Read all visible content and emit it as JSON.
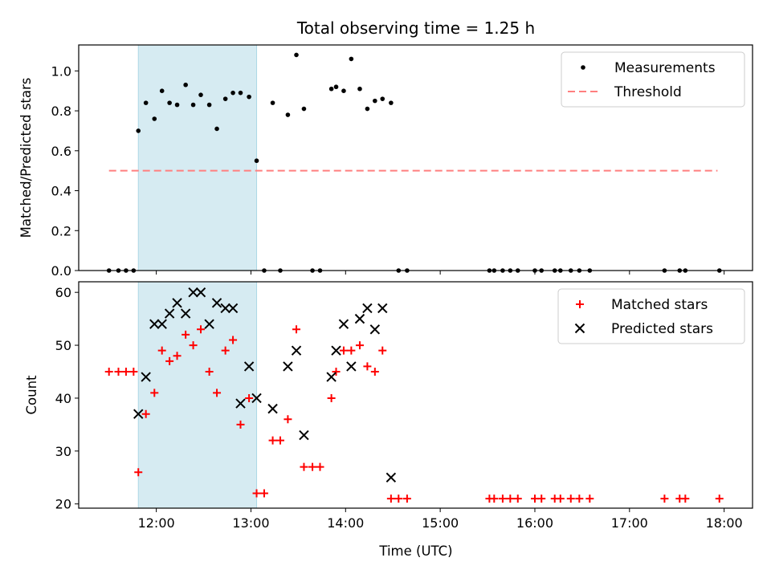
{
  "title": "Total observing time = 1.25 h",
  "xlabel": "Time (UTC)",
  "xticks": [
    "12:00",
    "13:00",
    "14:00",
    "15:00",
    "16:00",
    "17:00",
    "18:00"
  ],
  "colors": {
    "span": "#add8e6",
    "measure": "#000000",
    "threshold": "#ff7f7f",
    "matched": "#ff0000",
    "predicted": "#000000"
  },
  "chart_data": [
    {
      "type": "scatter",
      "name": "ratio-panel",
      "ylabel": "Matched/Predicted stars",
      "xlim": [
        11.18,
        18.3
      ],
      "ylim": [
        0,
        1.13
      ],
      "yticks": [
        "0.0",
        "0.2",
        "0.4",
        "0.6",
        "0.8",
        "1.0"
      ],
      "ytick_values": [
        0,
        0.2,
        0.4,
        0.6,
        0.8,
        1.0
      ],
      "highlight_span": [
        11.81,
        13.06
      ],
      "threshold": {
        "y": 0.5,
        "x": [
          11.5,
          17.93
        ]
      },
      "legend": {
        "position": "upper-right",
        "entries": [
          "Measurements",
          "Threshold"
        ]
      },
      "series": [
        {
          "name": "Measurements",
          "x": [
            11.5,
            11.6,
            11.68,
            11.76,
            11.81,
            11.89,
            11.98,
            12.06,
            12.14,
            12.22,
            12.31,
            12.39,
            12.47,
            12.56,
            12.64,
            12.73,
            12.81,
            12.89,
            12.98,
            13.06,
            13.14,
            13.23,
            13.31,
            13.39,
            13.48,
            13.56,
            13.65,
            13.73,
            13.85,
            13.9,
            13.98,
            14.06,
            14.15,
            14.23,
            14.31,
            14.39,
            14.48,
            14.56,
            14.65,
            15.52,
            15.57,
            15.66,
            15.74,
            15.82,
            16.0,
            16.07,
            16.21,
            16.27,
            16.38,
            16.47,
            16.58,
            17.37,
            17.53,
            17.59,
            17.95
          ],
          "y": [
            0,
            0,
            0,
            0,
            0.7,
            0.84,
            0.76,
            0.9,
            0.84,
            0.83,
            0.93,
            0.83,
            0.88,
            0.83,
            0.71,
            0.86,
            0.89,
            0.89,
            0.87,
            0.55,
            0,
            0.84,
            0,
            0.78,
            1.08,
            0.81,
            0,
            0,
            0.91,
            0.92,
            0.9,
            1.06,
            0.91,
            0.81,
            0.85,
            0.86,
            0.84,
            0,
            0,
            0,
            0,
            0,
            0,
            0,
            0,
            0,
            0,
            0,
            0,
            0,
            0,
            0,
            0,
            0,
            0
          ]
        }
      ]
    },
    {
      "type": "scatter",
      "name": "count-panel",
      "ylabel": "Count",
      "xlim": [
        11.18,
        18.3
      ],
      "ylim": [
        19.2,
        62.0
      ],
      "yticks": [
        "20",
        "30",
        "40",
        "50",
        "60"
      ],
      "ytick_values": [
        20,
        30,
        40,
        50,
        60
      ],
      "highlight_span": [
        11.81,
        13.06
      ],
      "legend": {
        "position": "upper-right",
        "entries": [
          "Matched stars",
          "Predicted stars"
        ]
      },
      "series": [
        {
          "name": "Matched stars",
          "x": [
            11.5,
            11.6,
            11.68,
            11.76,
            11.81,
            11.89,
            11.98,
            12.06,
            12.14,
            12.22,
            12.31,
            12.39,
            12.47,
            12.56,
            12.64,
            12.73,
            12.81,
            12.89,
            12.98,
            13.06,
            13.14,
            13.23,
            13.31,
            13.39,
            13.48,
            13.56,
            13.65,
            13.73,
            13.85,
            13.9,
            13.98,
            14.06,
            14.15,
            14.23,
            14.31,
            14.39,
            14.48,
            14.56,
            14.65,
            15.52,
            15.57,
            15.66,
            15.74,
            15.82,
            16.0,
            16.07,
            16.21,
            16.27,
            16.38,
            16.47,
            16.58,
            17.37,
            17.53,
            17.59,
            17.95
          ],
          "y": [
            45,
            45,
            45,
            45,
            26,
            37,
            41,
            49,
            47,
            48,
            52,
            50,
            53,
            45,
            41,
            49,
            51,
            35,
            40,
            22,
            22,
            32,
            32,
            36,
            53,
            27,
            27,
            27,
            40,
            45,
            49,
            49,
            50,
            46,
            45,
            49,
            21,
            21,
            21,
            21,
            21,
            21,
            21,
            21,
            21,
            21,
            21,
            21,
            21,
            21,
            21,
            21,
            21,
            21,
            21
          ]
        },
        {
          "name": "Predicted stars",
          "x": [
            11.81,
            11.89,
            11.98,
            12.06,
            12.14,
            12.22,
            12.31,
            12.39,
            12.47,
            12.56,
            12.64,
            12.73,
            12.81,
            12.89,
            12.98,
            13.06,
            13.23,
            13.39,
            13.48,
            13.56,
            13.85,
            13.9,
            13.98,
            14.06,
            14.15,
            14.23,
            14.31,
            14.39,
            14.48
          ],
          "y": [
            37,
            44,
            54,
            54,
            56,
            58,
            56,
            60,
            60,
            54,
            58,
            57,
            57,
            39,
            46,
            40,
            38,
            46,
            49,
            33,
            44,
            49,
            54,
            46,
            55,
            57,
            53,
            57,
            25
          ]
        }
      ]
    }
  ]
}
